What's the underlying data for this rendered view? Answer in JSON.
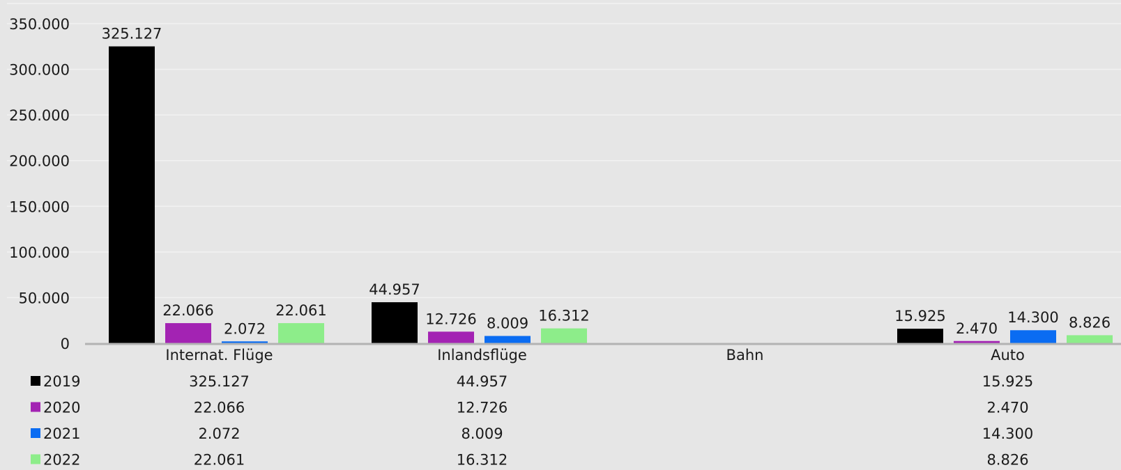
{
  "chart_data": {
    "type": "bar",
    "title": "",
    "xlabel": "",
    "ylabel": "",
    "categories": [
      "Internat. Flüge",
      "Inlandsflüge",
      "Bahn",
      "Auto"
    ],
    "ylim": [
      0,
      350000
    ],
    "yticks": [
      0,
      50000,
      100000,
      150000,
      200000,
      250000,
      300000,
      350000
    ],
    "ytick_labels": [
      "0",
      "50.000",
      "100.000",
      "150.000",
      "200.000",
      "250.000",
      "300.000",
      "350.000"
    ],
    "grid": true,
    "legend": "data-table-below",
    "series": [
      {
        "name": "2019",
        "color": "#000000",
        "values": [
          325127,
          44957,
          null,
          15925
        ],
        "labels": [
          "325.127",
          "44.957",
          "",
          "15.925"
        ]
      },
      {
        "name": "2020",
        "color": "#a323b3",
        "values": [
          22066,
          12726,
          null,
          2470
        ],
        "labels": [
          "22.066",
          "12.726",
          "",
          "2.470"
        ]
      },
      {
        "name": "2021",
        "color": "#0a6cf2",
        "values": [
          2072,
          8009,
          null,
          14300
        ],
        "labels": [
          "2.072",
          "8.009",
          "",
          "14.300"
        ]
      },
      {
        "name": "2022",
        "color": "#8ded8a",
        "values": [
          22061,
          16312,
          null,
          8826
        ],
        "labels": [
          "22.061",
          "16.312",
          "",
          "8.826"
        ]
      }
    ]
  }
}
